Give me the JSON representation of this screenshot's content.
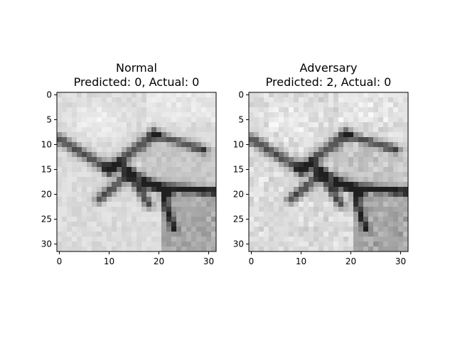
{
  "chart_data": [
    {
      "type": "heatmap",
      "title_line1": "Normal",
      "title_line2": "Predicted: 0, Actual: 0",
      "xlabel": "",
      "ylabel": "",
      "xlim": [
        -0.5,
        31.5
      ],
      "ylim": [
        31.5,
        -0.5
      ],
      "xticks": [
        0,
        10,
        20,
        30
      ],
      "yticks": [
        0,
        5,
        10,
        15,
        20,
        25,
        30
      ],
      "grid": false,
      "colormap": "gray",
      "image_size": [
        32,
        32
      ]
    },
    {
      "type": "heatmap",
      "title_line1": "Adversary",
      "title_line2": "Predicted: 2, Actual: 0",
      "xlabel": "",
      "ylabel": "",
      "xlim": [
        -0.5,
        31.5
      ],
      "ylim": [
        31.5,
        -0.5
      ],
      "xticks": [
        0,
        10,
        20,
        30
      ],
      "yticks": [
        0,
        5,
        10,
        15,
        20,
        25,
        30
      ],
      "grid": false,
      "colormap": "gray",
      "image_size": [
        32,
        32
      ]
    }
  ]
}
